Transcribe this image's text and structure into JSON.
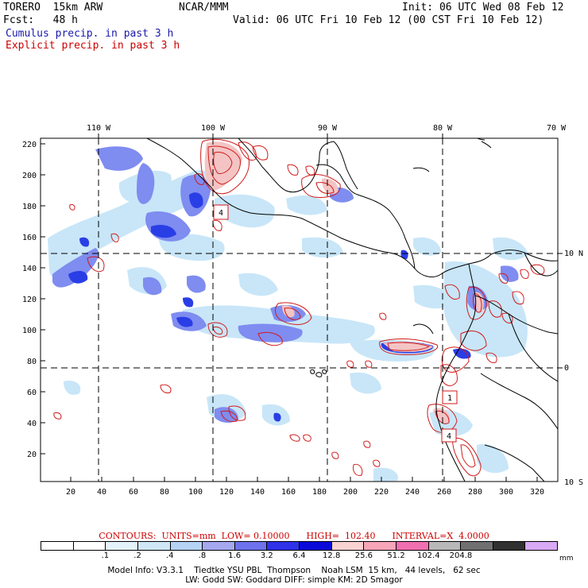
{
  "header": {
    "model": "TORERO  15km ARW",
    "org": "NCAR/MMM",
    "init": "Init: 06 UTC Wed 08 Feb 12",
    "fcst": "Fcst:   48 h",
    "valid": "Valid: 06 UTC Fri 10 Feb 12 (00 CST Fri 10 Feb 12)",
    "cumulus": "Cumulus precip. in past 3 h",
    "explicit": "Explicit precip. in past 3 h"
  },
  "axes": {
    "x_ticks": [
      "20",
      "40",
      "60",
      "80",
      "100",
      "120",
      "140",
      "160",
      "180",
      "200",
      "220",
      "240",
      "260",
      "280",
      "300",
      "320"
    ],
    "y_ticks": [
      "20",
      "40",
      "60",
      "80",
      "100",
      "120",
      "140",
      "160",
      "180",
      "200",
      "220"
    ],
    "lon_labels": [
      "110 W",
      "100 W",
      "90 W",
      "80 W",
      "70 W"
    ],
    "lat_labels": [
      "10 N",
      "0",
      "10 S"
    ]
  },
  "map_labels": {
    "box1": "4",
    "box2": "1",
    "box3": "4"
  },
  "colors": {
    "cumulus_light": "#c8e6f8",
    "cumulus_mid": "#7f8cf0",
    "cumulus_dark": "#2a3ee6",
    "explicit": "#d11a1a",
    "explicit_fill": "#f4c4c4",
    "coast": "#000000"
  },
  "contours": {
    "text": "CONTOURS:  UNITS=mm  LOW= 0.10000      HIGH=  102.40      INTERVAL=X  4.0000"
  },
  "colorbar": {
    "unit": "mm",
    "ticks": [
      ".1",
      ".2",
      ".4",
      ".8",
      "1.6",
      "3.2",
      "6.4",
      "12.8",
      "25.6",
      "51.2",
      "102.4",
      "204.8"
    ],
    "colors": [
      "#ffffff",
      "#ffffff",
      "#e4f2fb",
      "#cfe6f7",
      "#b5d3f5",
      "#a6a8ef",
      "#6e72ec",
      "#2e32e8",
      "#0a0ad8",
      "#f9d2d2",
      "#f7a5b8",
      "#f06fb0",
      "#b8b8b8",
      "#707070",
      "#303030",
      "#d8a9f5"
    ]
  },
  "footer": {
    "line1": "Model Info: V3.3.1    Tiedtke YSU PBL  Thompson    Noah LSM  15 km,   44 levels,   62 sec",
    "line2": "LW: Godd SW: Goddard DIFF: simple KM: 2D Smagor"
  }
}
